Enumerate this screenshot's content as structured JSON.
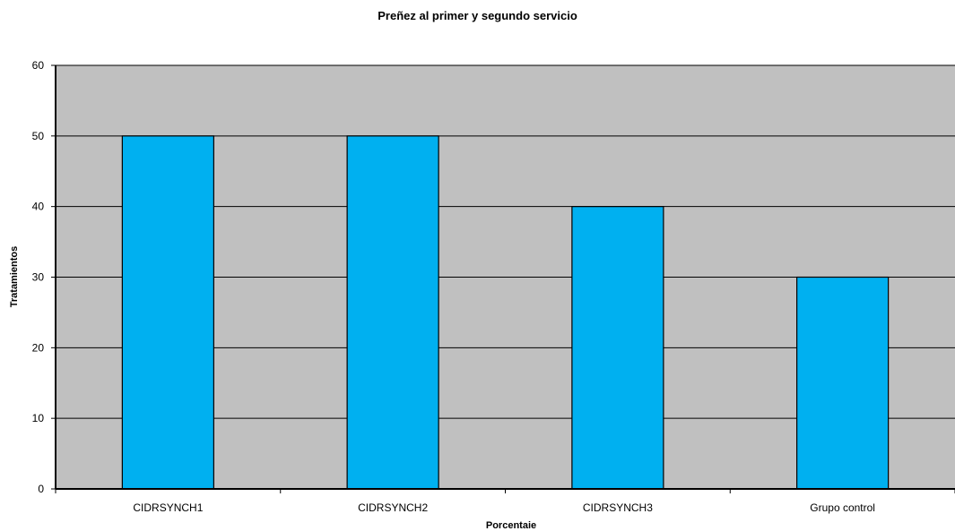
{
  "chart_data": {
    "type": "bar",
    "title": "Preñez al primer y segundo servicio",
    "xlabel": "Porcentaie",
    "ylabel": "Tratamientos",
    "categories": [
      "CIDRSYNCH1",
      "CIDRSYNCH2",
      "CIDRSYNCH3",
      "Grupo control"
    ],
    "values": [
      50,
      50,
      40,
      30
    ],
    "ylim": [
      0,
      60
    ],
    "yticks": [
      0,
      10,
      20,
      30,
      40,
      50,
      60
    ],
    "grid": true,
    "legend": "none",
    "colors": {
      "bar": "#00b0f0",
      "bar_border": "#000000",
      "plot_background": "#c0c0c0",
      "gridline": "#000000"
    }
  }
}
